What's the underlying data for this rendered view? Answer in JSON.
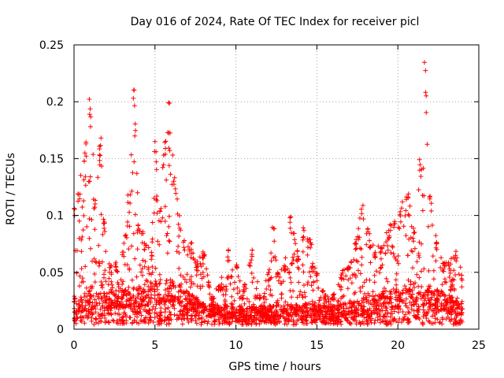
{
  "chart_data": {
    "type": "scatter",
    "title": "Day 016 of 2024, Rate Of TEC Index for receiver picl",
    "xlabel": "GPS time / hours",
    "ylabel": "ROTI / TECUs",
    "xlim": [
      0,
      25
    ],
    "ylim": [
      0,
      0.25
    ],
    "x_ticks": [
      0,
      5,
      10,
      15,
      20,
      25
    ],
    "y_ticks": [
      0,
      0.05,
      0.1,
      0.15,
      0.2,
      0.25
    ],
    "x_tick_labels": [
      "0",
      "5",
      "10",
      "15",
      "20",
      "25"
    ],
    "y_tick_labels": [
      "0",
      "0.05",
      "0.1",
      "0.15",
      "0.2",
      "0.25"
    ],
    "grid": true,
    "marker": "+",
    "color": "#ff0000",
    "envelope": {
      "description": "approximate upper envelope of ROTI values over the day",
      "x": [
        0.0,
        0.3,
        0.7,
        1.0,
        1.3,
        1.6,
        1.9,
        2.2,
        2.6,
        3.0,
        3.4,
        3.7,
        4.0,
        4.4,
        4.8,
        5.0,
        5.3,
        5.6,
        5.9,
        6.2,
        6.5,
        6.8,
        7.2,
        7.6,
        8.0,
        8.5,
        9.0,
        9.5,
        10.0,
        10.5,
        11.0,
        11.5,
        12.0,
        12.3,
        12.6,
        13.0,
        13.4,
        13.8,
        14.2,
        14.6,
        15.0,
        15.5,
        16.0,
        16.5,
        17.0,
        17.4,
        17.8,
        18.2,
        18.6,
        19.0,
        19.4,
        19.8,
        20.2,
        20.6,
        21.0,
        21.4,
        21.7,
        22.0,
        22.4,
        22.8,
        23.2,
        23.6,
        24.0
      ],
      "y": [
        0.11,
        0.13,
        0.17,
        0.21,
        0.12,
        0.17,
        0.1,
        0.06,
        0.06,
        0.07,
        0.12,
        0.22,
        0.1,
        0.08,
        0.07,
        0.17,
        0.11,
        0.17,
        0.2,
        0.14,
        0.1,
        0.08,
        0.08,
        0.06,
        0.07,
        0.03,
        0.04,
        0.07,
        0.06,
        0.04,
        0.07,
        0.03,
        0.05,
        0.09,
        0.05,
        0.06,
        0.1,
        0.07,
        0.09,
        0.08,
        0.05,
        0.03,
        0.03,
        0.05,
        0.06,
        0.08,
        0.11,
        0.09,
        0.07,
        0.08,
        0.09,
        0.1,
        0.11,
        0.12,
        0.09,
        0.15,
        0.235,
        0.12,
        0.08,
        0.06,
        0.06,
        0.07,
        0.05
      ]
    },
    "baseline": {
      "description": "approximate typical (dense band) ROTI level",
      "x": [
        0,
        2,
        4,
        6,
        8,
        10,
        12,
        14,
        16,
        18,
        20,
        22,
        24
      ],
      "y": [
        0.015,
        0.018,
        0.02,
        0.025,
        0.012,
        0.01,
        0.01,
        0.012,
        0.01,
        0.015,
        0.02,
        0.022,
        0.012
      ]
    }
  }
}
